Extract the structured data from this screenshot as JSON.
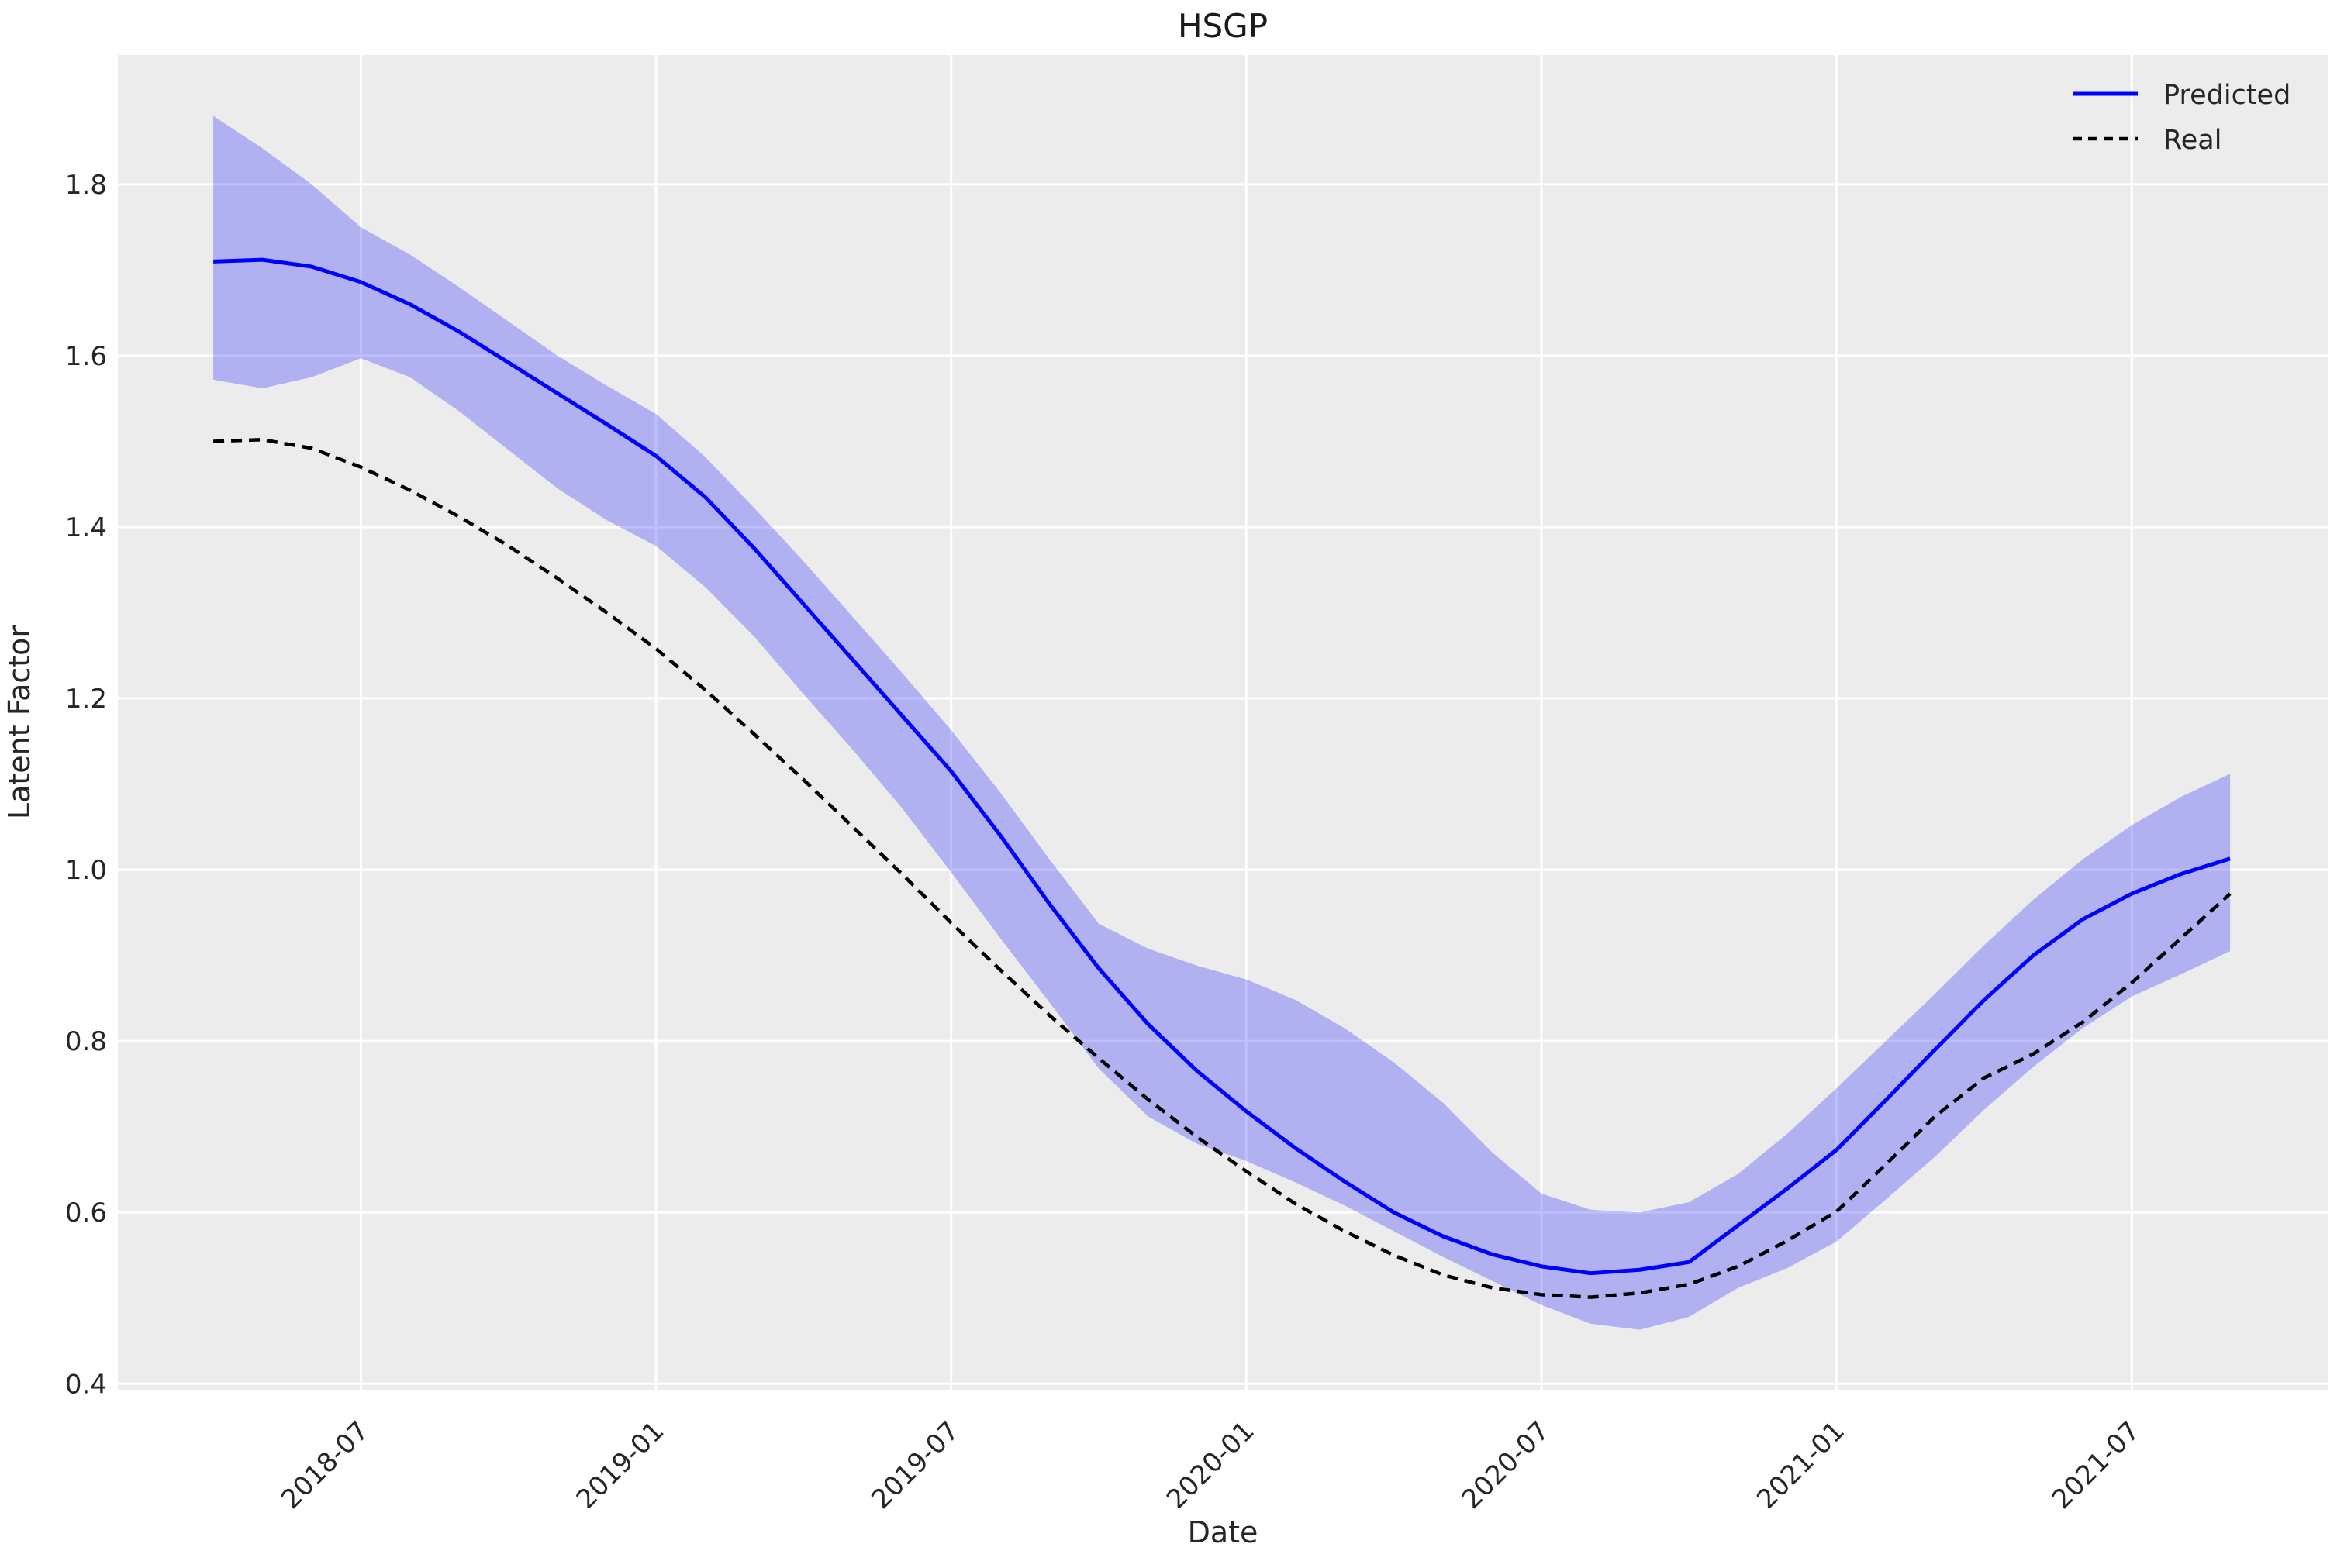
{
  "figure": {
    "title": "HSGP",
    "xlabel": "Date",
    "ylabel": "Latent Factor",
    "background_color": "#ffffff",
    "axes_background_color": "#ececec",
    "grid_color": "#ffffff",
    "text_color": "#262626",
    "title_color": "#1a1a1a"
  },
  "legend": {
    "position": "upper right",
    "items": [
      {
        "label": "Predicted",
        "color": "#0000ff",
        "style": "solid"
      },
      {
        "label": "Real",
        "color": "#000000",
        "style": "dashed"
      }
    ]
  },
  "chart_data": {
    "type": "line",
    "title": "HSGP",
    "xlabel": "Date",
    "ylabel": "Latent Factor",
    "grid": true,
    "legend_position": "upper right",
    "x": [
      "2018-04",
      "2018-05",
      "2018-06",
      "2018-07",
      "2018-08",
      "2018-09",
      "2018-10",
      "2018-11",
      "2018-12",
      "2019-01",
      "2019-02",
      "2019-03",
      "2019-04",
      "2019-05",
      "2019-06",
      "2019-07",
      "2019-08",
      "2019-09",
      "2019-10",
      "2019-11",
      "2019-12",
      "2020-01",
      "2020-02",
      "2020-03",
      "2020-04",
      "2020-05",
      "2020-06",
      "2020-07",
      "2020-08",
      "2020-09",
      "2020-10",
      "2020-11",
      "2020-12",
      "2021-01",
      "2021-02",
      "2021-03",
      "2021-04",
      "2021-05",
      "2021-06",
      "2021-07",
      "2021-08",
      "2021-09"
    ],
    "series": [
      {
        "name": "Predicted",
        "color": "#0000ff",
        "style": "solid",
        "values": [
          1.71,
          1.712,
          1.704,
          1.686,
          1.66,
          1.628,
          1.592,
          1.556,
          1.52,
          1.483,
          1.435,
          1.375,
          1.31,
          1.245,
          1.18,
          1.115,
          1.04,
          0.96,
          0.885,
          0.82,
          0.765,
          0.718,
          0.675,
          0.636,
          0.6,
          0.572,
          0.551,
          0.537,
          0.529,
          0.533,
          0.542,
          0.585,
          0.628,
          0.673,
          0.731,
          0.79,
          0.848,
          0.9,
          0.942,
          0.972,
          0.995,
          1.013
        ],
        "band_upper": [
          1.88,
          1.842,
          1.8,
          1.75,
          1.718,
          1.68,
          1.64,
          1.6,
          1.565,
          1.532,
          1.482,
          1.422,
          1.36,
          1.295,
          1.23,
          1.163,
          1.09,
          1.012,
          0.937,
          0.908,
          0.888,
          0.872,
          0.848,
          0.815,
          0.775,
          0.728,
          0.67,
          0.622,
          0.603,
          0.6,
          0.612,
          0.645,
          0.692,
          0.745,
          0.8,
          0.855,
          0.912,
          0.965,
          1.012,
          1.052,
          1.085,
          1.112
        ],
        "band_lower": [
          1.572,
          1.562,
          1.575,
          1.597,
          1.575,
          1.535,
          1.49,
          1.445,
          1.408,
          1.378,
          1.33,
          1.272,
          1.205,
          1.14,
          1.072,
          0.997,
          0.92,
          0.845,
          0.768,
          0.712,
          0.68,
          0.66,
          0.635,
          0.608,
          0.578,
          0.548,
          0.52,
          0.492,
          0.47,
          0.463,
          0.478,
          0.512,
          0.535,
          0.566,
          0.615,
          0.665,
          0.72,
          0.77,
          0.815,
          0.852,
          0.878,
          0.905
        ],
        "band_fill": "#0000ff",
        "band_opacity": 0.25
      },
      {
        "name": "Real",
        "color": "#000000",
        "style": "dashed",
        "values": [
          1.5,
          1.502,
          1.492,
          1.47,
          1.443,
          1.412,
          1.378,
          1.34,
          1.3,
          1.258,
          1.21,
          1.158,
          1.105,
          1.05,
          0.995,
          0.938,
          0.883,
          0.83,
          0.78,
          0.732,
          0.688,
          0.648,
          0.61,
          0.578,
          0.55,
          0.527,
          0.512,
          0.504,
          0.501,
          0.506,
          0.516,
          0.537,
          0.567,
          0.601,
          0.656,
          0.712,
          0.757,
          0.785,
          0.822,
          0.868,
          0.92,
          0.972
        ]
      }
    ],
    "x_ticks": {
      "labels": [
        "2018-07",
        "2019-01",
        "2019-07",
        "2020-01",
        "2020-07",
        "2021-01",
        "2021-07"
      ],
      "month_index": [
        3,
        9,
        15,
        21,
        27,
        33,
        39
      ],
      "rotation_deg": 45
    },
    "y_ticks": {
      "values": [
        0.4,
        0.6,
        0.8,
        1.0,
        1.2,
        1.4,
        1.6,
        1.8
      ],
      "labels": [
        "0.4",
        "0.6",
        "0.8",
        "1.0",
        "1.2",
        "1.4",
        "1.6",
        "1.8"
      ]
    },
    "xlim_months": [
      -1.94,
      43.0
    ],
    "ylim": [
      0.393,
      1.951
    ]
  }
}
